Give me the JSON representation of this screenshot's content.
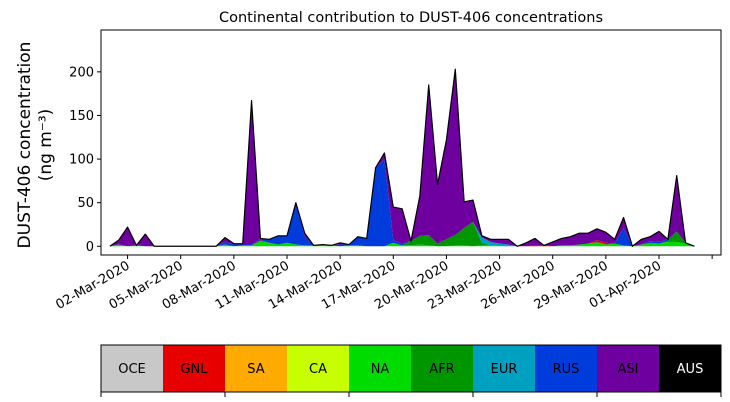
{
  "chart_data": {
    "type": "area",
    "title": "Continental contribution to DUST-406 concentrations",
    "ylabel_line1": "DUST-406 concentration",
    "ylabel_line2": "(ng m⁻³)",
    "xlabel": "",
    "ylim": [
      -10,
      248
    ],
    "xlim": [
      -0.5,
      34.5
    ],
    "yticks": [
      0,
      50,
      100,
      150,
      200
    ],
    "xticks": [
      {
        "x": 1,
        "label": "02-Mar-2020"
      },
      {
        "x": 4,
        "label": "05-Mar-2020"
      },
      {
        "x": 7,
        "label": "08-Mar-2020"
      },
      {
        "x": 10,
        "label": "11-Mar-2020"
      },
      {
        "x": 13,
        "label": "14-Mar-2020"
      },
      {
        "x": 16,
        "label": "17-Mar-2020"
      },
      {
        "x": 19,
        "label": "20-Mar-2020"
      },
      {
        "x": 22,
        "label": "23-Mar-2020"
      },
      {
        "x": 25,
        "label": "26-Mar-2020"
      },
      {
        "x": 28,
        "label": "29-Mar-2020"
      },
      {
        "x": 31,
        "label": "01-Apr-2020"
      },
      {
        "x": 34,
        "label": ""
      }
    ],
    "x": [
      0,
      0.5,
      1,
      1.5,
      2,
      2.5,
      3,
      3.5,
      4,
      4.5,
      5,
      5.5,
      6,
      6.5,
      7,
      7.5,
      8,
      8.5,
      9,
      9.5,
      10,
      10.5,
      11,
      11.5,
      12,
      12.5,
      13,
      13.5,
      14,
      14.5,
      15,
      15.5,
      16,
      16.5,
      17,
      17.5,
      18,
      18.5,
      19,
      19.5,
      20,
      20.5,
      21,
      21.5,
      22,
      22.5,
      23,
      23.5,
      24,
      24.5,
      25,
      25.5,
      26,
      26.5,
      27,
      27.5,
      28,
      28.5,
      29,
      29.5,
      30,
      30.5,
      31,
      31.5,
      32,
      32.5,
      33
    ],
    "series": [
      {
        "name": "NA",
        "color": "#00dc00",
        "values": [
          0,
          2,
          0,
          1,
          0,
          0,
          0,
          0,
          0,
          0,
          0,
          0,
          0,
          2,
          0,
          1,
          1,
          6,
          4,
          2,
          4,
          2,
          1,
          1,
          2,
          1,
          0,
          1,
          1,
          0,
          0,
          0,
          4,
          1,
          1,
          2,
          1,
          0,
          0,
          1,
          1,
          0,
          1,
          1,
          0,
          0,
          0,
          0,
          0,
          0,
          0,
          1,
          1,
          2,
          3,
          4,
          2,
          3,
          1,
          0,
          2,
          3,
          3,
          5,
          5,
          3,
          0
        ]
      },
      {
        "name": "AFR",
        "color": "#009600",
        "values": [
          0,
          0,
          0,
          0,
          0,
          0,
          0,
          0,
          0,
          0,
          0,
          0,
          0,
          0,
          0,
          0,
          0,
          0,
          0,
          0,
          0,
          0,
          0,
          0,
          0,
          0,
          0,
          0,
          0,
          0,
          0,
          0,
          0,
          0,
          5,
          10,
          12,
          3,
          8,
          12,
          20,
          28,
          3,
          0,
          0,
          0,
          0,
          0,
          0,
          0,
          0,
          0,
          0,
          0,
          0,
          1,
          0,
          0,
          0,
          0,
          0,
          1,
          0,
          1,
          12,
          1,
          0
        ]
      },
      {
        "name": "GNL",
        "color": "#e60000",
        "values": [
          0,
          0,
          0,
          0,
          0,
          0,
          0,
          0,
          0,
          0,
          0,
          0,
          0,
          0,
          0,
          0,
          0,
          1,
          0,
          0,
          0,
          0,
          0,
          0,
          0,
          0,
          0,
          0,
          0,
          0,
          0,
          0,
          0,
          0,
          0,
          0,
          0,
          0,
          0,
          0,
          0,
          0,
          0,
          0,
          0,
          0,
          0,
          0,
          1,
          1,
          0,
          0,
          0,
          0,
          0,
          2,
          2,
          0,
          0,
          0,
          0,
          0,
          0,
          0,
          0,
          0,
          0
        ]
      },
      {
        "name": "EUR",
        "color": "#00a0c0",
        "values": [
          0,
          0,
          0,
          0,
          0,
          0,
          0,
          0,
          0,
          0,
          0,
          0,
          0,
          0,
          0,
          0,
          0,
          0,
          0,
          0,
          0,
          0,
          0,
          0,
          0,
          0,
          0,
          0,
          0,
          0,
          0,
          0,
          0,
          0,
          0,
          0,
          0,
          0,
          0,
          0,
          0,
          0,
          6,
          4,
          3,
          2,
          0,
          0,
          0,
          0,
          0,
          0,
          0,
          0,
          0,
          0,
          0,
          0,
          0,
          0,
          0,
          0,
          0,
          0,
          0,
          0,
          0
        ]
      },
      {
        "name": "RUS",
        "color": "#003cdc",
        "values": [
          0,
          0,
          0,
          0,
          0,
          0,
          0,
          0,
          0,
          0,
          0,
          0,
          0,
          3,
          2,
          1,
          1,
          2,
          4,
          10,
          8,
          48,
          10,
          0,
          0,
          0,
          2,
          1,
          10,
          9,
          90,
          100,
          3,
          2,
          0,
          0,
          0,
          0,
          0,
          0,
          0,
          0,
          0,
          0,
          0,
          0,
          0,
          0,
          0,
          0,
          0,
          0,
          0,
          0,
          0,
          0,
          0,
          0,
          20,
          0,
          0,
          2,
          2,
          2,
          0,
          0,
          0
        ]
      },
      {
        "name": "ASI",
        "color": "#6e00a0",
        "values": [
          0,
          5,
          22,
          0,
          14,
          0,
          0,
          0,
          0,
          0,
          0,
          0,
          0,
          5,
          1,
          1,
          165,
          0,
          0,
          0,
          0,
          0,
          4,
          0,
          0,
          0,
          2,
          0,
          0,
          0,
          0,
          7,
          38,
          40,
          0,
          46,
          172,
          68,
          114,
          190,
          30,
          25,
          2,
          3,
          5,
          6,
          0,
          4,
          8,
          0,
          5,
          8,
          10,
          13,
          12,
          13,
          12,
          5,
          12,
          0,
          6,
          5,
          12,
          0,
          64,
          0,
          0
        ]
      }
    ],
    "colorbar": [
      {
        "label": "OCE",
        "color": "#c8c8c8",
        "text_color": "#000000"
      },
      {
        "label": "GNL",
        "color": "#e60000",
        "text_color": "#000000"
      },
      {
        "label": "SA",
        "color": "#ffaa00",
        "text_color": "#000000"
      },
      {
        "label": "CA",
        "color": "#c8ff00",
        "text_color": "#000000"
      },
      {
        "label": "NA",
        "color": "#00dc00",
        "text_color": "#000000"
      },
      {
        "label": "AFR",
        "color": "#009600",
        "text_color": "#000000"
      },
      {
        "label": "EUR",
        "color": "#00a0c0",
        "text_color": "#000000"
      },
      {
        "label": "RUS",
        "color": "#003cdc",
        "text_color": "#000000"
      },
      {
        "label": "ASI",
        "color": "#6e00a0",
        "text_color": "#000000"
      },
      {
        "label": "AUS",
        "color": "#000000",
        "text_color": "#ffffff"
      }
    ]
  }
}
